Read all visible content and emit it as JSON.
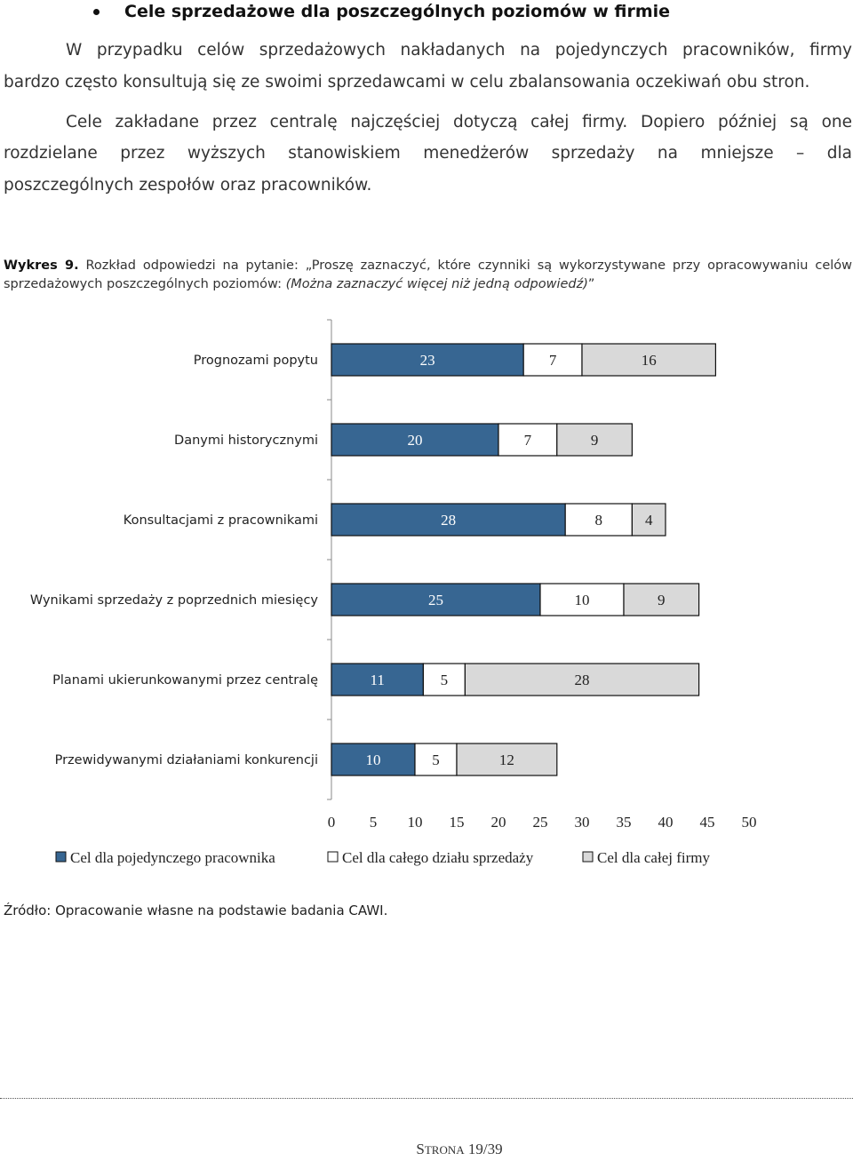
{
  "heading": "Cele sprzedażowe dla poszczególnych poziomów w firmie",
  "paragraph1_line1": "W przypadku celów sprzedażowych nakładanych na pojedynczych pracowników, firmy",
  "paragraph1_line2": "bardzo często konsultują się ze swoimi sprzedawcami w celu zbalansowania oczekiwań obu stron.",
  "paragraph2_line1": "Cele zakładane przez centralę najczęściej dotyczą całej firmy. Dopiero później są one",
  "paragraph2_line2": "rozdzielane przez wyższych stanowiskiem menedżerów sprzedaży na mniejsze – dla",
  "paragraph2_line3": "poszczególnych zespołów oraz pracowników.",
  "figure_caption": {
    "label": "Wykres 9.",
    "text": "Rozkład odpowiedzi na pytanie: „Proszę zaznaczyć, które czynniki są wykorzystywane przy opracowywaniu celów sprzedażowych poszczególnych poziomów: ",
    "italic": "(Można zaznaczyć więcej niż jedną odpowiedź)",
    "closing": "”"
  },
  "chart_data": {
    "type": "bar",
    "orientation": "horizontal",
    "stacked": true,
    "categories": [
      "Prognozami popytu",
      "Danymi historycznymi",
      "Konsultacjami z pracownikami",
      "Wynikami sprzedaży z poprzednich miesięcy",
      "Planami ukierunkowanymi przez centralę",
      "Przewidywanymi działaniami konkurencji"
    ],
    "series": [
      {
        "name": "Cel dla pojedynczego pracownika",
        "values": [
          23,
          20,
          28,
          25,
          11,
          10
        ],
        "color": "#376692",
        "label_color": "#ffffff"
      },
      {
        "name": "Cel dla całego działu sprzedaży",
        "values": [
          7,
          7,
          8,
          10,
          5,
          5
        ],
        "color": "#ffffff",
        "label_color": "#222222"
      },
      {
        "name": "Cel dla całej firmy",
        "values": [
          16,
          9,
          4,
          9,
          28,
          12
        ],
        "color": "#d9d9d9",
        "label_color": "#222222"
      }
    ],
    "x_ticks": [
      "0",
      "5",
      "10",
      "15",
      "20",
      "25",
      "30",
      "35",
      "40",
      "45",
      "50"
    ],
    "xlim": [
      0,
      50
    ],
    "grid": false,
    "legend_position": "bottom"
  },
  "source": "Źródło: Opracowanie własne na podstawie badania CAWI.",
  "footer": {
    "strona_first": "S",
    "strona_rest": "TRONA",
    "page": "19/39"
  }
}
